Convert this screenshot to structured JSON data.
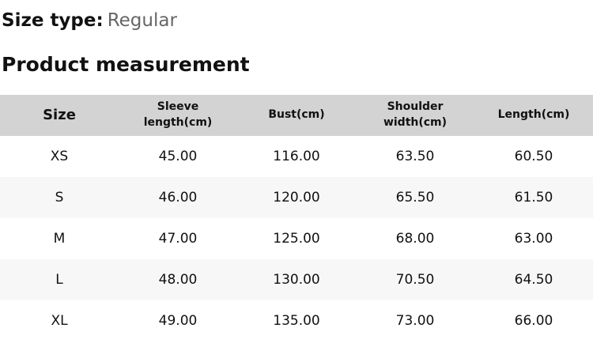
{
  "page": {
    "size_type_label": "Size type:",
    "size_type_value": "Regular",
    "section_title": "Product measurement"
  },
  "table": {
    "columns": [
      "Size",
      "Sleeve length(cm)",
      "Bust(cm)",
      "Shoulder width(cm)",
      "Length(cm)"
    ],
    "rows": [
      [
        "XS",
        "45.00",
        "116.00",
        "63.50",
        "60.50"
      ],
      [
        "S",
        "46.00",
        "120.00",
        "65.50",
        "61.50"
      ],
      [
        "M",
        "47.00",
        "125.00",
        "68.00",
        "63.00"
      ],
      [
        "L",
        "48.00",
        "130.00",
        "70.50",
        "64.50"
      ],
      [
        "XL",
        "49.00",
        "135.00",
        "73.00",
        "66.00"
      ]
    ]
  },
  "colors": {
    "header_bg": "#d3d3d3",
    "stripe_bg": "#f7f7f7",
    "muted_text": "#666666",
    "text": "#111111"
  }
}
